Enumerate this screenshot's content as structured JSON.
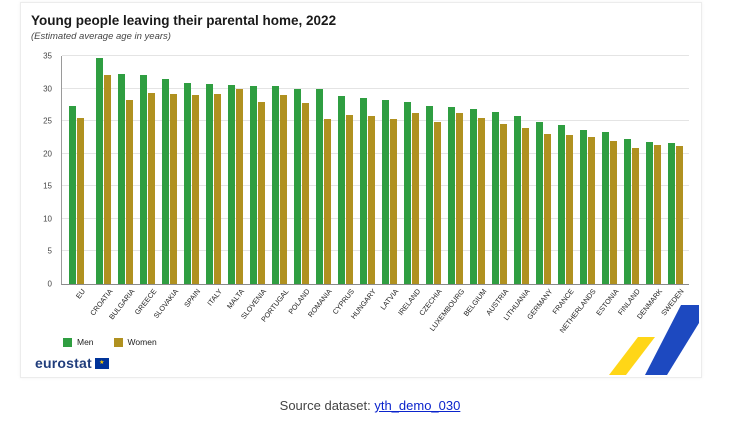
{
  "chart": {
    "title": "Young people leaving their parental home, 2022",
    "subtitle": "(Estimated average age in years)"
  },
  "chart_data": {
    "type": "bar",
    "title": "Young people leaving their parental home, 2022",
    "subtitle": "(Estimated average age in years)",
    "ylabel": "Estimated average age in years",
    "ylim": [
      0,
      35
    ],
    "yticks": [
      0,
      5,
      10,
      15,
      20,
      25,
      30,
      35
    ],
    "grid": true,
    "legend_position": "bottom-left",
    "categories": [
      "EU",
      "CROATIA",
      "BULGARIA",
      "GREECE",
      "SLOVAKIA",
      "SPAIN",
      "ITALY",
      "MALTA",
      "SLOVENIA",
      "PORTUGAL",
      "POLAND",
      "ROMANIA",
      "CYPRUS",
      "HUNGARY",
      "LATVIA",
      "IRELAND",
      "CZECHIA",
      "LUXEMBOURG",
      "BELGIUM",
      "AUSTRIA",
      "LITHUANIA",
      "GERMANY",
      "FRANCE",
      "NETHERLANDS",
      "ESTONIA",
      "FINLAND",
      "DENMARK",
      "SWEDEN"
    ],
    "series": [
      {
        "name": "Men",
        "color": "#2f9e41",
        "values": [
          27.4,
          34.7,
          32.2,
          32.1,
          31.4,
          30.9,
          30.7,
          30.6,
          30.4,
          30.4,
          30.0,
          29.9,
          28.8,
          28.6,
          28.3,
          27.9,
          27.3,
          27.1,
          26.9,
          26.4,
          25.8,
          24.8,
          24.4,
          23.7,
          23.4,
          22.2,
          21.8,
          21.7
        ]
      },
      {
        "name": "Women",
        "color": "#b09120",
        "values": [
          25.5,
          32.1,
          28.3,
          29.3,
          29.2,
          29.0,
          29.1,
          30.0,
          27.9,
          29.0,
          27.8,
          25.4,
          25.9,
          25.8,
          25.4,
          26.3,
          24.9,
          26.2,
          25.5,
          24.5,
          24.0,
          23.1,
          22.8,
          22.6,
          21.9,
          20.9,
          21.3,
          21.2
        ]
      }
    ]
  },
  "branding": {
    "logo_text": "eurostat",
    "eu_flag_star": "★"
  },
  "source": {
    "label": "Source dataset: ",
    "link": "yth_demo_030"
  }
}
